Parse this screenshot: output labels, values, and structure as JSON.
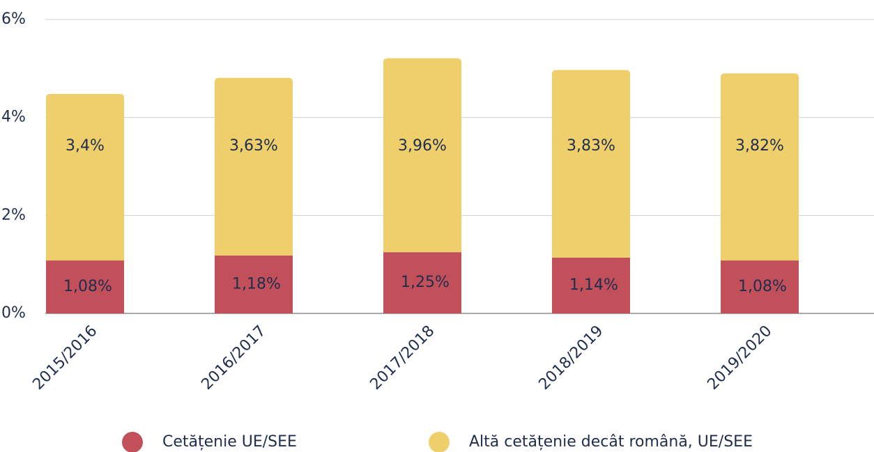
{
  "chart_data": {
    "type": "stacked_bar",
    "categories": [
      "2015/2016",
      "2016/2017",
      "2017/2018",
      "2018/2019",
      "2019/2020"
    ],
    "series": [
      {
        "name": "Cetățenie UE/SEE",
        "color": "#c1505a",
        "values": [
          1.08,
          1.18,
          1.25,
          1.14,
          1.08
        ],
        "value_labels": [
          "1,08%",
          "1,18%",
          "1,25%",
          "1,14%",
          "1,08%"
        ]
      },
      {
        "name": "Altă cetățenie decât română, UE/SEE",
        "color": "#efcf6c",
        "values": [
          3.4,
          3.63,
          3.96,
          3.83,
          3.82
        ],
        "value_labels": [
          "3,4%",
          "3,63%",
          "3,96%",
          "3,83%",
          "3,82%"
        ]
      }
    ],
    "ylim": [
      0,
      6
    ],
    "yticks": [
      {
        "value": 0,
        "label": "0%"
      },
      {
        "value": 2,
        "label": "2%"
      },
      {
        "value": 4,
        "label": "4%"
      },
      {
        "value": 6,
        "label": "6%"
      }
    ],
    "grid": true,
    "legend": "bottom"
  }
}
